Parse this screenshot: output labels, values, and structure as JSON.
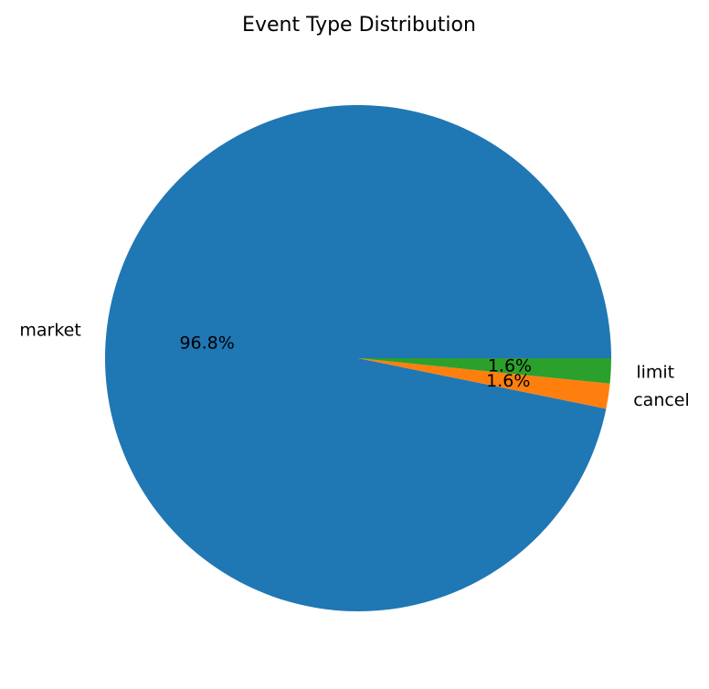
{
  "chart_data": {
    "type": "pie",
    "title": "Event Type Distribution",
    "categories": [
      "market",
      "cancel",
      "limit"
    ],
    "values": [
      96.8,
      1.6,
      1.6
    ],
    "percent_labels": [
      "96.8%",
      "1.6%",
      "1.6%"
    ],
    "colors": [
      "#1f77b4",
      "#ff7f0e",
      "#2ca02c"
    ],
    "start_angle_deg": 0,
    "direction": "counterclockwise",
    "legend": "none"
  }
}
